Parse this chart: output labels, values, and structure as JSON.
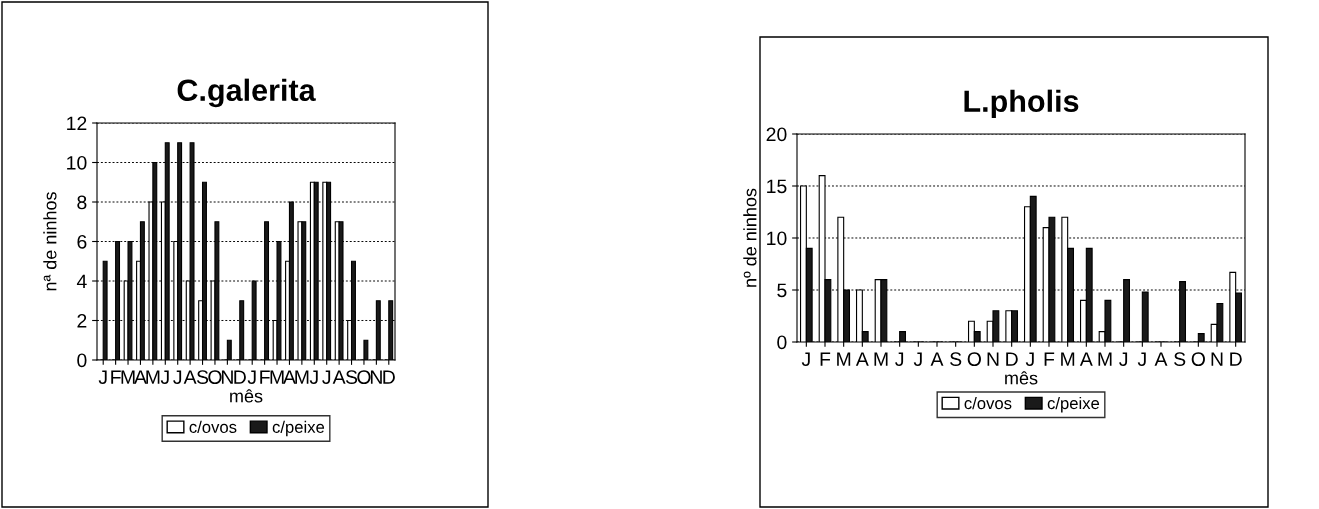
{
  "chart_data": [
    {
      "type": "bar",
      "title": "C.galerita",
      "xlabel": "mês",
      "ylabel": "nª de ninhos",
      "categories": [
        "J",
        "F",
        "M",
        "A",
        "M",
        "J",
        "J",
        "A",
        "S",
        "O",
        "N",
        "D",
        "J",
        "F",
        "M",
        "A",
        "M",
        "J",
        "J",
        "A",
        "S",
        "O",
        "N",
        "D"
      ],
      "series": [
        {
          "name": "c/ovos",
          "color": "#ffffff",
          "values": [
            0,
            0,
            4,
            5,
            8,
            8,
            6,
            4,
            3,
            4,
            0,
            0,
            0,
            0,
            2,
            5,
            7,
            9,
            9,
            7,
            2,
            0,
            0,
            0
          ]
        },
        {
          "name": "c/peixe",
          "color": "#1a1a1a",
          "values": [
            5,
            6,
            6,
            7,
            10,
            11,
            11,
            11,
            9,
            7,
            1,
            3,
            4,
            7,
            6,
            8,
            7,
            9,
            9,
            7,
            5,
            1,
            3,
            3
          ]
        }
      ],
      "ylim": [
        0,
        12
      ],
      "yticks": [
        0,
        2,
        4,
        6,
        8,
        10,
        12
      ],
      "grid": "y",
      "legend": "bottom"
    },
    {
      "type": "bar",
      "title": "L.pholis",
      "xlabel": "mês",
      "ylabel": "nº de ninhos",
      "categories": [
        "J",
        "F",
        "M",
        "A",
        "M",
        "J",
        "J",
        "A",
        "S",
        "O",
        "N",
        "D",
        "J",
        "F",
        "M",
        "A",
        "M",
        "J",
        "J",
        "A",
        "S",
        "O",
        "N",
        "D"
      ],
      "series": [
        {
          "name": "c/ovos",
          "color": "#ffffff",
          "values": [
            15,
            16,
            12,
            5,
            6,
            0,
            0,
            0,
            0,
            2,
            2,
            3,
            13,
            11,
            12,
            4,
            1,
            0,
            0,
            0,
            0,
            0,
            1.7,
            6.7
          ]
        },
        {
          "name": "c/peixe",
          "color": "#1a1a1a",
          "values": [
            9,
            6,
            5,
            1,
            6,
            1,
            0,
            0,
            0,
            1,
            3,
            3,
            14,
            12,
            9,
            9,
            4,
            6,
            4.8,
            0,
            5.8,
            0.8,
            3.7,
            4.7
          ]
        }
      ],
      "ylim": [
        0,
        20
      ],
      "yticks": [
        0,
        5,
        10,
        15,
        20
      ],
      "grid": "y",
      "legend": "bottom"
    }
  ]
}
